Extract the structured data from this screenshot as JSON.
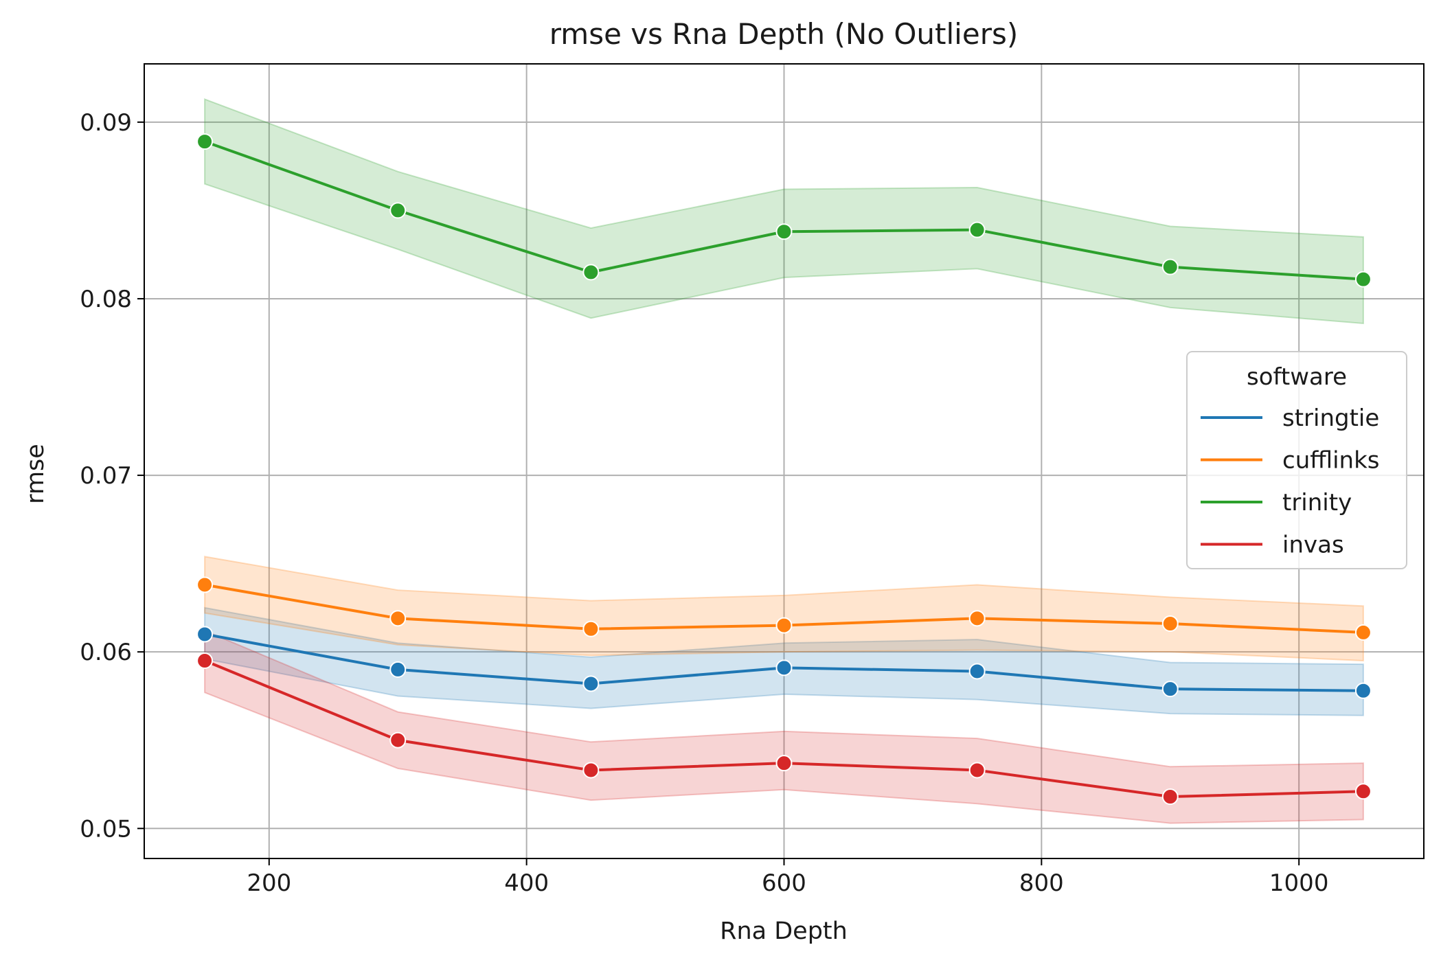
{
  "chart_data": {
    "type": "line",
    "title": "rmse vs Rna Depth (No Outliers)",
    "xlabel": "Rna Depth",
    "ylabel": "rmse",
    "xlim": [
      103,
      1097
    ],
    "ylim": [
      0.0483,
      0.0933
    ],
    "x_ticks": [
      200,
      400,
      600,
      800,
      1000
    ],
    "x_tick_labels": [
      "200",
      "400",
      "600",
      "800",
      "1000"
    ],
    "y_ticks": [
      0.05,
      0.06,
      0.07,
      0.08,
      0.09
    ],
    "y_tick_labels": [
      "0.05",
      "0.06",
      "0.07",
      "0.08",
      "0.09"
    ],
    "grid": true,
    "legend": {
      "title": "software",
      "position": "right"
    },
    "x": [
      150,
      300,
      450,
      600,
      750,
      900,
      1050
    ],
    "series": [
      {
        "name": "stringtie",
        "color": "#1f77b4",
        "values": [
          0.061,
          0.059,
          0.0582,
          0.0591,
          0.0589,
          0.0579,
          0.0578
        ],
        "ci_low": [
          0.0596,
          0.0575,
          0.0568,
          0.0576,
          0.0573,
          0.0565,
          0.0564
        ],
        "ci_high": [
          0.0625,
          0.0605,
          0.0597,
          0.0605,
          0.0607,
          0.0594,
          0.0593
        ]
      },
      {
        "name": "cufflinks",
        "color": "#ff7f0e",
        "values": [
          0.0638,
          0.0619,
          0.0613,
          0.0615,
          0.0619,
          0.0616,
          0.0611
        ],
        "ci_low": [
          0.0622,
          0.0604,
          0.0598,
          0.06,
          0.0601,
          0.06,
          0.0595
        ],
        "ci_high": [
          0.0654,
          0.0635,
          0.0629,
          0.0632,
          0.0638,
          0.0631,
          0.0626
        ]
      },
      {
        "name": "trinity",
        "color": "#2ca02c",
        "values": [
          0.0889,
          0.085,
          0.0815,
          0.0838,
          0.0839,
          0.0818,
          0.0811
        ],
        "ci_low": [
          0.0865,
          0.0828,
          0.0789,
          0.0812,
          0.0817,
          0.0795,
          0.0786
        ],
        "ci_high": [
          0.0913,
          0.0872,
          0.084,
          0.0862,
          0.0863,
          0.0841,
          0.0835
        ]
      },
      {
        "name": "invas",
        "color": "#d62728",
        "values": [
          0.0595,
          0.055,
          0.0533,
          0.0537,
          0.0533,
          0.0518,
          0.0521
        ],
        "ci_low": [
          0.0577,
          0.0534,
          0.0516,
          0.0522,
          0.0514,
          0.0503,
          0.0505
        ],
        "ci_high": [
          0.0612,
          0.0566,
          0.0549,
          0.0555,
          0.0551,
          0.0535,
          0.0537
        ]
      }
    ]
  }
}
